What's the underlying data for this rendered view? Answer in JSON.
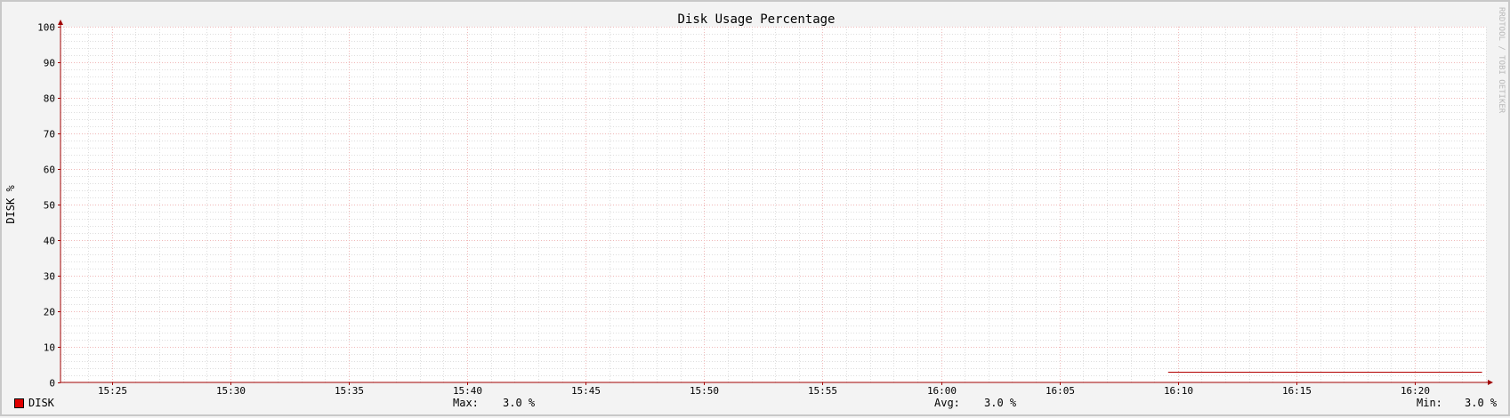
{
  "chart_data": {
    "type": "line",
    "title": "Disk Usage Percentage",
    "ylabel": "DISK %",
    "xlabel": "",
    "ylim": [
      0,
      100
    ],
    "y_ticks": [
      "0",
      "10",
      "20",
      "30",
      "40",
      "50",
      "60",
      "70",
      "80",
      "90",
      "100"
    ],
    "xlim": [
      "15:22:50",
      "16:23:00"
    ],
    "x_ticks": [
      "15:25",
      "15:30",
      "15:35",
      "15:40",
      "15:45",
      "15:50",
      "15:55",
      "16:00",
      "16:05",
      "16:10",
      "16:15",
      "16:20"
    ],
    "grid": true,
    "legend_position": "bottom",
    "series": [
      {
        "name": "DISK",
        "color": "#cc0000",
        "x": [
          "16:09:35",
          "16:22:50"
        ],
        "y": [
          3.0,
          3.0
        ]
      }
    ],
    "stats": [
      {
        "label": "Max:",
        "value": "3.0 %"
      },
      {
        "label": "Avg:",
        "value": "3.0 %"
      },
      {
        "label": "Min:",
        "value": "3.0 %"
      }
    ]
  },
  "watermark": "RRDTOOL / TOBI OETIKER",
  "colors": {
    "line": "#b30000",
    "axis": "#a00000",
    "major_grid": "#f0b8b8",
    "minor_grid": "#dedede",
    "swatch": "#e00000"
  }
}
